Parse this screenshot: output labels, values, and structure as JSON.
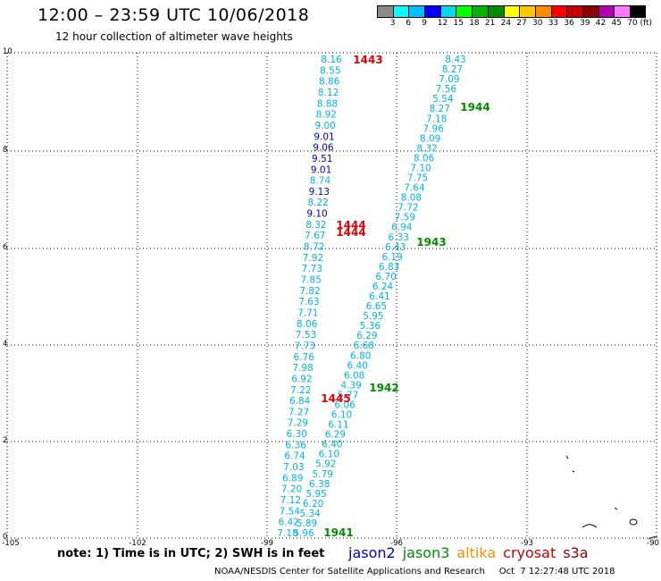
{
  "header": {
    "title": "12:00 – 23:59 UTC 10/06/2018",
    "subtitle": "12 hour collection of altimeter wave heights"
  },
  "color_scale": {
    "labels": [
      "3",
      "6",
      "9",
      "12",
      "15",
      "18",
      "21",
      "24",
      "27",
      "30",
      "33",
      "36",
      "39",
      "42",
      "45",
      "70 (ft)"
    ],
    "colors": [
      "#8c8c8c",
      "#00ffff",
      "#00bfff",
      "#0000ff",
      "#00d8e8",
      "#00ff00",
      "#00b400",
      "#008c00",
      "#ffff00",
      "#ffc800",
      "#ff8c00",
      "#ff0000",
      "#c80000",
      "#8c0000",
      "#b400b4",
      "#ff78ff",
      "#000000"
    ]
  },
  "axes": {
    "x_ticks": [
      "-105",
      "-102",
      "-99",
      "-96",
      "-93",
      "-90"
    ],
    "y_ticks": [
      "0",
      "2",
      "4",
      "6",
      "8",
      "10"
    ]
  },
  "value_colors": {
    "c": "#00b4e6",
    "b": "#0000c8"
  },
  "track1": {
    "values": [
      "8.16",
      "8.55",
      "8.86",
      "8.12",
      "8.88",
      "8.92",
      "9.00",
      "9.01",
      "9.06",
      "9.51",
      "9.01",
      "8.74",
      "9.13",
      "8.22",
      "9.10",
      "8.32",
      "7.67",
      "8.72",
      "7.92",
      "7.73",
      "7.85",
      "7.82",
      "7.63",
      "7.71",
      "8.06",
      "7.53",
      "7.73",
      "6.76",
      "7.98",
      "6.92",
      "7.22",
      "6.84",
      "7.27",
      "7.29",
      "6.30",
      "6.36",
      "6.74",
      "7.03",
      "6.89",
      "7.20",
      "7.12",
      "7.54",
      "6.42",
      "7.18"
    ],
    "colors": [
      "c",
      "c",
      "c",
      "c",
      "c",
      "c",
      "c",
      "b",
      "b",
      "b",
      "b",
      "c",
      "b",
      "c",
      "b",
      "c",
      "c",
      "c",
      "c",
      "c",
      "c",
      "c",
      "c",
      "c",
      "c",
      "c",
      "c",
      "c",
      "c",
      "c",
      "c",
      "c",
      "c",
      "c",
      "c",
      "c",
      "c",
      "c",
      "c",
      "c",
      "c",
      "c",
      "c",
      "c"
    ]
  },
  "track2": {
    "values": [
      "8.43",
      "8.27",
      "7.09",
      "7.56",
      "5.54",
      "8.27",
      "7.18",
      "7.96",
      "8.09",
      "8.32",
      "8.06",
      "7.10",
      "7.75",
      "7.64",
      "8.08",
      "7.72",
      "7.59",
      "6.94",
      "6.33",
      "6.43",
      "6.19",
      "6.83",
      "6.70",
      "6.24",
      "6.41",
      "6.65",
      "5.95",
      "5.36",
      "6.29",
      "6.68",
      "6.80",
      "6.40",
      "6.08",
      "4.39",
      "5.77",
      "6.06",
      "6.10",
      "6.11",
      "6.29",
      "6.40",
      "6.10",
      "5.92",
      "5.79",
      "6.38",
      "5.95",
      "6.20",
      "5.34",
      "5.89",
      "5.96"
    ]
  },
  "time_labels": {
    "red": [
      "1443",
      "1444",
      "1444",
      "1445"
    ],
    "green": [
      "1944",
      "1943",
      "1942",
      "1941"
    ]
  },
  "footer": {
    "note": "note:  1) Time is in UTC;  2) SWH is in feet",
    "legend": [
      {
        "name": "jason2",
        "color": "#0000d2"
      },
      {
        "name": "jason3",
        "color": "#008c00"
      },
      {
        "name": "altika",
        "color": "#ff8c00"
      },
      {
        "name": "cryosat",
        "color": "#d20000"
      },
      {
        "name": "s3a",
        "color": "#8c0000"
      }
    ],
    "credit": "NOAA/NESDIS Center for Satellite Applications and Research     Oct  7 12:27:48 UTC 2018"
  }
}
